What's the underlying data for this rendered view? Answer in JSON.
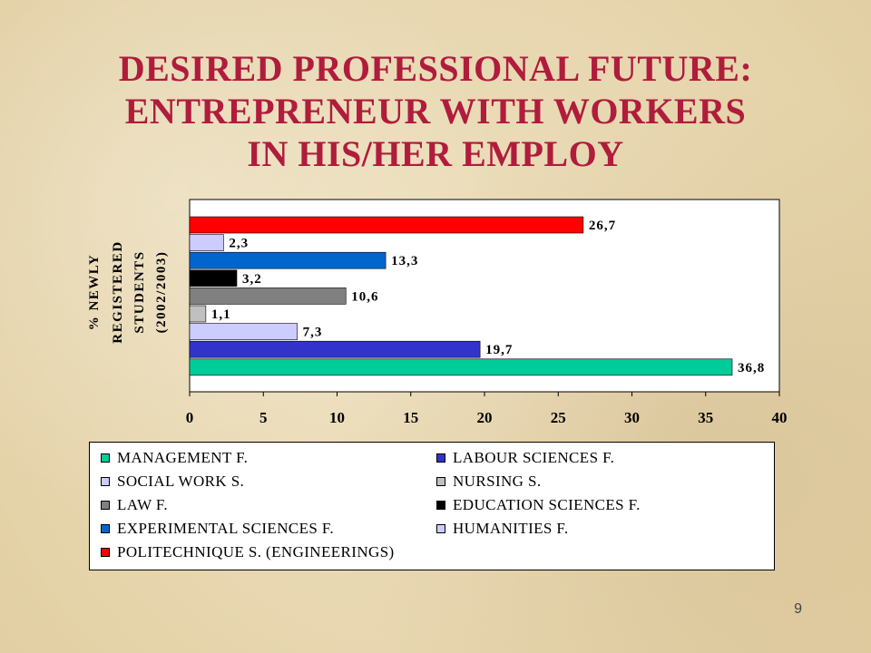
{
  "slide": {
    "title_lines": [
      "DESIRED PROFESSIONAL FUTURE:",
      "ENTREPRENEUR WITH WORKERS",
      "IN HIS/HER EMPLOY"
    ],
    "page_number": "9"
  },
  "chart_data": {
    "type": "bar",
    "orientation": "horizontal",
    "ylabel_lines": [
      "% NEWLY",
      "REGISTERED",
      "STUDENTS",
      "(2002/2003)"
    ],
    "xlim": [
      0,
      40
    ],
    "xticks": [
      0,
      5,
      10,
      15,
      20,
      25,
      30,
      35,
      40
    ],
    "xtick_labels": [
      "0",
      "5",
      "10",
      "15",
      "20",
      "25",
      "30",
      "35",
      "40"
    ],
    "grid": false,
    "legend_position": "bottom",
    "categories": [
      "POLITECHNIQUE S. (ENGINEERINGS)",
      "HUMANITIES F.",
      "EXPERIMENTAL SCIENCES F.",
      "EDUCATION SCIENCES F.",
      "LAW F.",
      "NURSING S.",
      "SOCIAL WORK S.",
      "LABOUR SCIENCES F.",
      "MANAGEMENT F."
    ],
    "values": [
      26.7,
      2.3,
      13.3,
      3.2,
      10.6,
      1.1,
      7.3,
      19.7,
      36.8
    ],
    "value_labels": [
      "26,7",
      "2,3",
      "13,3",
      "3,2",
      "10,6",
      "1,1",
      "7,3",
      "19,7",
      "36,8"
    ],
    "colors": [
      "#ff0000",
      "#ccccff",
      "#0066cc",
      "#000000",
      "#808080",
      "#c0c0c0",
      "#ccccff",
      "#3333cc",
      "#00cc99"
    ]
  },
  "legend": {
    "items": [
      {
        "label": "MANAGEMENT F.",
        "color": "#00cc99"
      },
      {
        "label": "LABOUR SCIENCES F.",
        "color": "#3333cc"
      },
      {
        "label": "SOCIAL WORK S.",
        "color": "#ccccff"
      },
      {
        "label": "NURSING S.",
        "color": "#c0c0c0"
      },
      {
        "label": "LAW F.",
        "color": "#808080"
      },
      {
        "label": "EDUCATION SCIENCES F.",
        "color": "#000000"
      },
      {
        "label": "EXPERIMENTAL SCIENCES F.",
        "color": "#0066cc"
      },
      {
        "label": "HUMANITIES F.",
        "color": "#ccccff"
      },
      {
        "label": "POLITECHNIQUE S. (ENGINEERINGS)",
        "color": "#ff0000"
      }
    ]
  }
}
